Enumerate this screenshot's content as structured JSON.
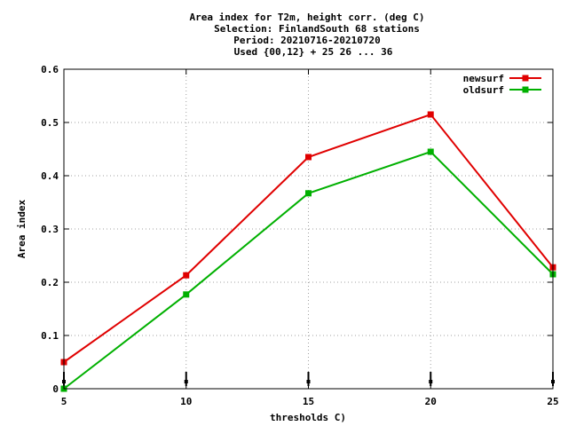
{
  "chart_data": {
    "type": "line",
    "title_lines": [
      "Area index  for T2m, height corr. (deg C)",
      "Selection: FinlandSouth     68 stations",
      "Period: 20210716-20210720",
      "Used {00,12} + 25 26 ... 36"
    ],
    "xlabel": "thresholds C)",
    "ylabel": "Area index",
    "x": [
      5,
      10,
      15,
      20,
      25
    ],
    "xlim": [
      5,
      25
    ],
    "ylim": [
      0,
      0.6
    ],
    "x_ticks": [
      "5",
      "10",
      "15",
      "20",
      "25"
    ],
    "y_ticks": [
      "0",
      "0.1",
      "0.2",
      "0.3",
      "0.4",
      "0.5",
      "0.6"
    ],
    "grid": true,
    "legend_position": "top-right",
    "series": [
      {
        "name": "newsurf",
        "color": "#e00000",
        "values": [
          0.05,
          0.213,
          0.435,
          0.515,
          0.228
        ]
      },
      {
        "name": "oldsurf",
        "color": "#00b000",
        "values": [
          0.0,
          0.177,
          0.367,
          0.445,
          0.215
        ]
      }
    ]
  }
}
